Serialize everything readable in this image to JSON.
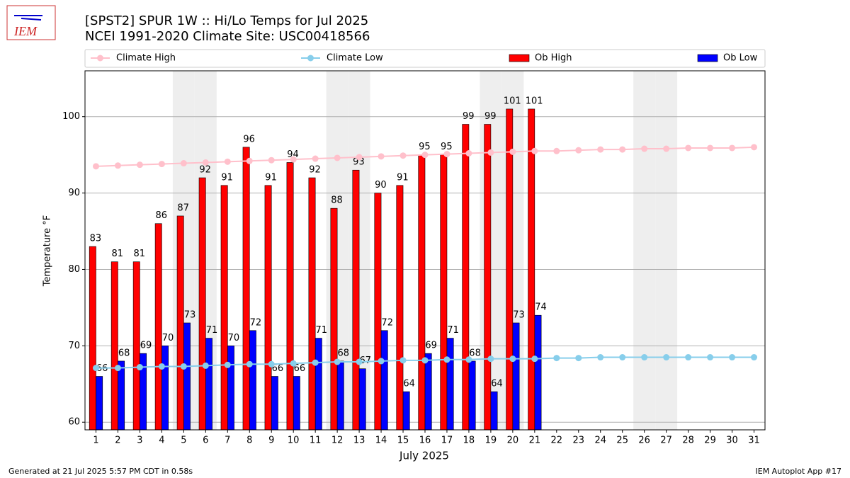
{
  "chart_data": {
    "type": "bar",
    "logo_text": "IEM",
    "title": "[SPST2] SPUR 1W :: Hi/Lo Temps for Jul 2025",
    "subtitle": "NCEI 1991-2020 Climate Site: USC00418566",
    "x_label": "July 2025",
    "y_label": "Temperature °F",
    "footer_left": "Generated at 21 Jul 2025 5:57 PM CDT in 0.58s",
    "footer_right": "IEM Autoplot App #17",
    "x": [
      1,
      2,
      3,
      4,
      5,
      6,
      7,
      8,
      9,
      10,
      11,
      12,
      13,
      14,
      15,
      16,
      17,
      18,
      19,
      20,
      21,
      22,
      23,
      24,
      25,
      26,
      27,
      28,
      29,
      30,
      31
    ],
    "xlim": [
      0.5,
      31.5
    ],
    "ylim": [
      59,
      106
    ],
    "yticks": [
      60,
      70,
      80,
      90,
      100
    ],
    "grid": true,
    "shaded_days": [
      5,
      6,
      12,
      13,
      19,
      20,
      26,
      27
    ],
    "series": [
      {
        "name": "Climate High",
        "type": "line",
        "color": "#ffc0cb",
        "values": [
          93.5,
          93.6,
          93.7,
          93.8,
          93.9,
          94.0,
          94.1,
          94.2,
          94.3,
          94.4,
          94.5,
          94.6,
          94.7,
          94.8,
          94.9,
          95.0,
          95.1,
          95.2,
          95.3,
          95.4,
          95.5,
          95.5,
          95.6,
          95.7,
          95.7,
          95.8,
          95.8,
          95.9,
          95.9,
          95.9,
          96.0
        ]
      },
      {
        "name": "Climate Low",
        "type": "line",
        "color": "#87ceeb",
        "values": [
          67.1,
          67.1,
          67.2,
          67.3,
          67.3,
          67.4,
          67.5,
          67.6,
          67.6,
          67.7,
          67.8,
          67.9,
          67.9,
          68.0,
          68.1,
          68.1,
          68.2,
          68.2,
          68.3,
          68.3,
          68.3,
          68.4,
          68.4,
          68.5,
          68.5,
          68.5,
          68.5,
          68.5,
          68.5,
          68.5,
          68.5
        ]
      },
      {
        "name": "Ob High",
        "type": "bar",
        "color": "#ff0000",
        "values": [
          83,
          81,
          81,
          86,
          87,
          92,
          91,
          96,
          91,
          94,
          92,
          88,
          93,
          90,
          91,
          95,
          95,
          99,
          99,
          101,
          101,
          null,
          null,
          null,
          null,
          null,
          null,
          null,
          null,
          null,
          null
        ]
      },
      {
        "name": "Ob Low",
        "type": "bar",
        "color": "#0000ff",
        "values": [
          66,
          68,
          69,
          70,
          73,
          71,
          70,
          72,
          66,
          66,
          71,
          68,
          67,
          72,
          64,
          69,
          71,
          68,
          64,
          73,
          74,
          null,
          null,
          null,
          null,
          null,
          null,
          null,
          null,
          null,
          null
        ]
      }
    ]
  }
}
